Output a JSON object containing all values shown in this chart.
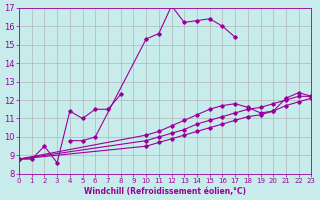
{
  "xlabel": "Windchill (Refroidissement éolien,°C)",
  "ylabel": "",
  "bg_color": "#c8ecec",
  "line_color": "#9b009b",
  "grid_color": "#aaaaaa",
  "xlim": [
    0,
    23
  ],
  "ylim": [
    8,
    17
  ],
  "xticks": [
    0,
    1,
    2,
    3,
    4,
    5,
    6,
    7,
    8,
    9,
    10,
    11,
    12,
    13,
    14,
    15,
    16,
    17,
    18,
    19,
    20,
    21,
    22,
    23
  ],
  "yticks": [
    8,
    9,
    10,
    11,
    12,
    13,
    14,
    15,
    16,
    17
  ],
  "series": [
    [
      8.8,
      8.8,
      9.5,
      8.6,
      11.4,
      11.0,
      11.5,
      11.5,
      12.3,
      null,
      null,
      null,
      null,
      null,
      null,
      null,
      null,
      null,
      null,
      null,
      null,
      null,
      null,
      null
    ],
    [
      null,
      null,
      null,
      null,
      9.8,
      9.8,
      10.0,
      null,
      null,
      null,
      15.3,
      15.6,
      17.1,
      16.2,
      16.3,
      16.4,
      16.0,
      15.4,
      null,
      null,
      null,
      null,
      null,
      null
    ],
    [
      8.8,
      null,
      null,
      null,
      null,
      null,
      null,
      null,
      null,
      null,
      10.1,
      10.3,
      10.6,
      10.9,
      11.2,
      11.5,
      11.7,
      11.8,
      11.6,
      11.3,
      11.4,
      12.1,
      12.4,
      12.2
    ],
    [
      8.8,
      null,
      null,
      null,
      null,
      null,
      null,
      null,
      null,
      null,
      9.8,
      10.0,
      10.2,
      10.4,
      10.7,
      10.9,
      11.1,
      11.3,
      11.5,
      11.6,
      11.8,
      12.0,
      12.2,
      12.2
    ],
    [
      8.8,
      null,
      null,
      null,
      null,
      null,
      null,
      null,
      null,
      null,
      9.5,
      9.7,
      9.9,
      10.1,
      10.3,
      10.5,
      10.7,
      10.9,
      11.1,
      11.2,
      11.4,
      11.7,
      11.9,
      12.1
    ]
  ]
}
